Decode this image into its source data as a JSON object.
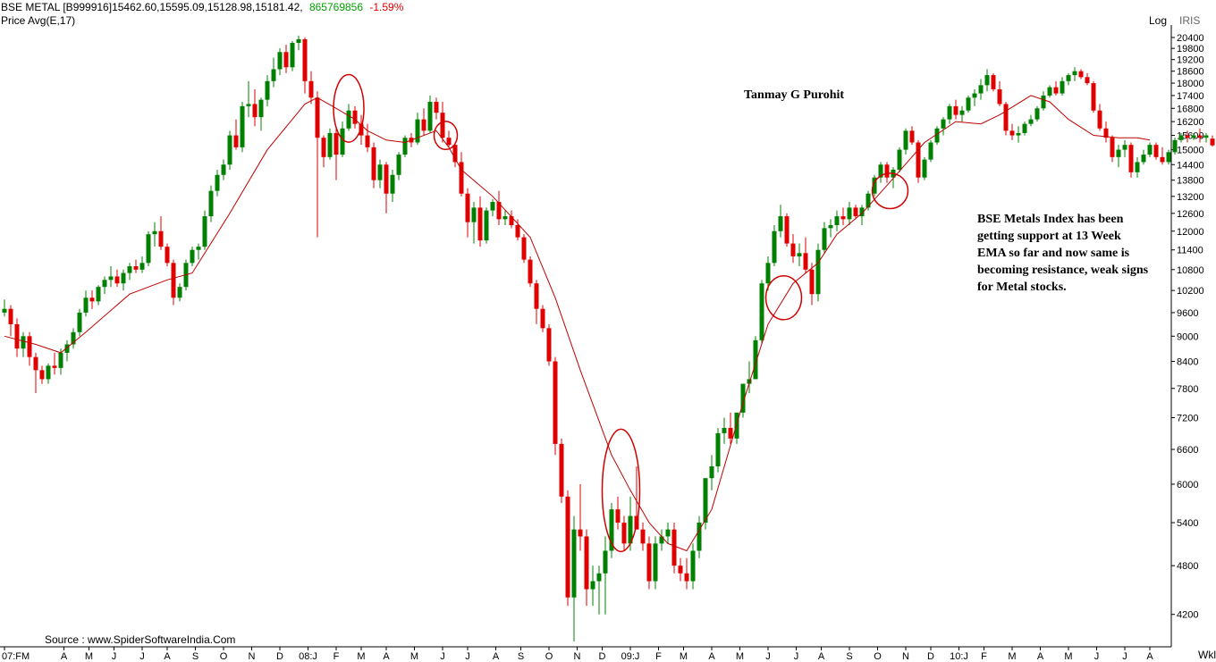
{
  "header": {
    "symbol_line": "BSE METAL [B999916]15462.60,15595.09,15128.98,15181.42,",
    "volume": "865769856",
    "change": "-1.59%",
    "indicator": "Price  Avg(E,17)",
    "scale_label": "Log",
    "brand": "IRIS"
  },
  "annotations": {
    "author": "Tanmay G Purohit",
    "comment": "BSE Metals Index  has been getting support at 13 Week EMA so far and now same is becoming resistance, weak signs for Metal stocks.",
    "source": "Source : www.SpiderSoftwareIndia.Com",
    "period_label": "Wkl"
  },
  "colors": {
    "up": "#008000",
    "down": "#e00000",
    "ema": "#c00000",
    "circle": "#d00000",
    "volume_text": "#00a000",
    "change_text": "#e00000"
  },
  "chart_data": {
    "type": "candlestick",
    "title": "BSE METAL [B999916]",
    "y_scale": "log",
    "ylim": [
      3900,
      20800
    ],
    "y_ticks": [
      4200,
      4800,
      5400,
      6000,
      6600,
      7200,
      7800,
      8400,
      9000,
      9600,
      10200,
      10800,
      11400,
      12000,
      12600,
      13200,
      13800,
      14400,
      15000,
      15600,
      16200,
      16800,
      17400,
      18000,
      18600,
      19200,
      19800,
      20400
    ],
    "x_labels": [
      "07:FM",
      "A",
      "M",
      "J",
      "J",
      "A",
      "S",
      "O",
      "N",
      "D",
      "08:J",
      "F",
      "M",
      "A",
      "M",
      "J",
      "J",
      "A",
      "S",
      "O",
      "N",
      "D",
      "09:J",
      "F",
      "M",
      "A",
      "M",
      "J",
      "J",
      "A",
      "S",
      "O",
      "N",
      "D",
      "10:J",
      "F",
      "M",
      "A",
      "M",
      "J",
      "J",
      "A"
    ],
    "x_label_weeks": [
      0,
      9.5,
      13.5,
      17.5,
      22,
      26,
      30.5,
      35,
      39.5,
      44,
      48.5,
      53,
      57,
      61,
      65.5,
      70,
      74,
      78.5,
      82.5,
      87,
      91.5,
      95.5,
      100,
      104.5,
      108.5,
      113,
      117.5,
      122,
      126.5,
      130.5,
      135,
      139.5,
      144,
      148,
      152.5,
      156.5,
      161,
      165.5,
      170,
      174.5,
      179,
      183
    ],
    "series_ema_name": "Avg(E,17)",
    "candles": [
      [
        9600,
        9950,
        9500,
        9700
      ],
      [
        9700,
        9800,
        9000,
        9300
      ],
      [
        9300,
        9450,
        8500,
        8700
      ],
      [
        8700,
        9100,
        8500,
        9000
      ],
      [
        9000,
        9100,
        8300,
        8500
      ],
      [
        8500,
        8600,
        7700,
        8200
      ],
      [
        8200,
        8300,
        7900,
        8000
      ],
      [
        8000,
        8350,
        7900,
        8300
      ],
      [
        8300,
        8600,
        8100,
        8250
      ],
      [
        8250,
        8700,
        8100,
        8600
      ],
      [
        8600,
        8900,
        8400,
        8800
      ],
      [
        8800,
        9200,
        8700,
        9100
      ],
      [
        9100,
        9700,
        9000,
        9600
      ],
      [
        9600,
        10200,
        9500,
        10000
      ],
      [
        10000,
        10200,
        9700,
        9900
      ],
      [
        9900,
        10350,
        9800,
        10300
      ],
      [
        10300,
        10600,
        10100,
        10500
      ],
      [
        10500,
        10900,
        10300,
        10600
      ],
      [
        10600,
        10800,
        10300,
        10400
      ],
      [
        10400,
        10800,
        10200,
        10700
      ],
      [
        10700,
        11000,
        10500,
        10900
      ],
      [
        10900,
        11100,
        10700,
        10800
      ],
      [
        10800,
        11200,
        10700,
        11000
      ],
      [
        11000,
        12000,
        10900,
        11900
      ],
      [
        11900,
        12300,
        11500,
        12000
      ],
      [
        12000,
        12500,
        11400,
        11500
      ],
      [
        11500,
        11600,
        10900,
        11000
      ],
      [
        11000,
        11100,
        9800,
        10000
      ],
      [
        10000,
        10400,
        9900,
        10300
      ],
      [
        10300,
        11100,
        10200,
        11000
      ],
      [
        11000,
        11500,
        10900,
        11400
      ],
      [
        11400,
        11600,
        11100,
        11500
      ],
      [
        11500,
        12700,
        11400,
        12500
      ],
      [
        12500,
        13600,
        12300,
        13400
      ],
      [
        13400,
        14200,
        13200,
        14000
      ],
      [
        14000,
        14600,
        13800,
        14400
      ],
      [
        14400,
        15800,
        14200,
        15600
      ],
      [
        15600,
        16300,
        15000,
        15100
      ],
      [
        15100,
        17100,
        14900,
        16900
      ],
      [
        16900,
        18100,
        16400,
        17000
      ],
      [
        17000,
        17700,
        16000,
        16400
      ],
      [
        16400,
        17300,
        15800,
        17200
      ],
      [
        17200,
        18400,
        16900,
        18100
      ],
      [
        18100,
        19300,
        17800,
        18700
      ],
      [
        18700,
        19800,
        18400,
        19600
      ],
      [
        19600,
        20000,
        18500,
        18800
      ],
      [
        18800,
        20200,
        18600,
        20100
      ],
      [
        20100,
        20500,
        19700,
        20300
      ],
      [
        20300,
        20400,
        17500,
        18100
      ],
      [
        18100,
        18600,
        17000,
        17300
      ],
      [
        17300,
        17600,
        11800,
        15500
      ],
      [
        15500,
        15600,
        14300,
        14700
      ],
      [
        14700,
        15900,
        14600,
        15700
      ],
      [
        15700,
        15900,
        13800,
        14800
      ],
      [
        14800,
        16200,
        14700,
        15900
      ],
      [
        15900,
        17000,
        15800,
        16700
      ],
      [
        16700,
        16900,
        15900,
        16100
      ],
      [
        16100,
        16500,
        15200,
        15600
      ],
      [
        15600,
        16100,
        14900,
        15100
      ],
      [
        15100,
        15300,
        13500,
        13800
      ],
      [
        13800,
        14600,
        13500,
        14400
      ],
      [
        14400,
        14500,
        12600,
        13300
      ],
      [
        13300,
        14200,
        13000,
        14000
      ],
      [
        14000,
        14900,
        13800,
        14800
      ],
      [
        14800,
        15600,
        14700,
        15500
      ],
      [
        15500,
        15700,
        15100,
        15300
      ],
      [
        15300,
        16600,
        15200,
        16300
      ],
      [
        16300,
        16800,
        15600,
        15800
      ],
      [
        15800,
        17400,
        15700,
        17100
      ],
      [
        17100,
        17300,
        16300,
        16600
      ],
      [
        16600,
        17100,
        15300,
        15500
      ],
      [
        15500,
        15800,
        15100,
        15200
      ],
      [
        15200,
        15300,
        14300,
        14500
      ],
      [
        14500,
        14900,
        13200,
        13300
      ],
      [
        13300,
        13500,
        11800,
        12300
      ],
      [
        12300,
        13000,
        11600,
        12800
      ],
      [
        12800,
        13200,
        11500,
        11700
      ],
      [
        11700,
        12800,
        11600,
        12700
      ],
      [
        12700,
        13100,
        12500,
        13000
      ],
      [
        13000,
        13400,
        12200,
        12400
      ],
      [
        12400,
        12700,
        12200,
        12500
      ],
      [
        12500,
        12700,
        12100,
        12200
      ],
      [
        12200,
        12400,
        11700,
        11800
      ],
      [
        11800,
        11900,
        11000,
        11100
      ],
      [
        11100,
        11200,
        10300,
        10400
      ],
      [
        10400,
        10500,
        9300,
        9700
      ],
      [
        9700,
        9800,
        9100,
        9200
      ],
      [
        9200,
        9300,
        8300,
        8400
      ],
      [
        8400,
        8500,
        6500,
        6700
      ],
      [
        6700,
        6800,
        5700,
        5800
      ],
      [
        5800,
        5900,
        4300,
        4400
      ],
      [
        4400,
        5500,
        3900,
        5300
      ],
      [
        5300,
        6000,
        5000,
        5200
      ],
      [
        5200,
        5300,
        4300,
        4500
      ],
      [
        4500,
        4800,
        4300,
        4600
      ],
      [
        4600,
        4800,
        4200,
        4700
      ],
      [
        4700,
        5200,
        4200,
        5000
      ],
      [
        5000,
        5700,
        4900,
        5600
      ],
      [
        5600,
        5800,
        5300,
        5400
      ],
      [
        5400,
        5500,
        5000,
        5100
      ],
      [
        5100,
        5800,
        5000,
        5500
      ],
      [
        5500,
        6300,
        5400,
        5300
      ],
      [
        5300,
        5400,
        5000,
        5100
      ],
      [
        5100,
        5200,
        4500,
        4600
      ],
      [
        4600,
        5200,
        4500,
        5100
      ],
      [
        5100,
        5300,
        5000,
        5200
      ],
      [
        5200,
        5400,
        5100,
        5300
      ],
      [
        5300,
        5400,
        4700,
        4800
      ],
      [
        4800,
        4900,
        4600,
        4700
      ],
      [
        4700,
        4900,
        4500,
        4600
      ],
      [
        4600,
        5100,
        4500,
        5000
      ],
      [
        5000,
        5500,
        4900,
        5400
      ],
      [
        5400,
        6100,
        5300,
        6100
      ],
      [
        6100,
        6500,
        5900,
        6300
      ],
      [
        6300,
        7000,
        6200,
        6900
      ],
      [
        6900,
        7200,
        6700,
        7000
      ],
      [
        7000,
        7300,
        6700,
        6800
      ],
      [
        6800,
        7300,
        6700,
        7300
      ],
      [
        7300,
        7900,
        7200,
        7900
      ],
      [
        7900,
        8400,
        7700,
        8000
      ],
      [
        8000,
        9000,
        8000,
        8900
      ],
      [
        8900,
        10500,
        8800,
        10400
      ],
      [
        10400,
        11200,
        10200,
        11000
      ],
      [
        11000,
        12200,
        10900,
        12000
      ],
      [
        12000,
        12900,
        11800,
        12500
      ],
      [
        12500,
        12600,
        11500,
        11600
      ],
      [
        11600,
        11900,
        11000,
        11200
      ],
      [
        11200,
        11600,
        10900,
        11300
      ],
      [
        11300,
        11800,
        10700,
        10800
      ],
      [
        10800,
        11000,
        9800,
        10100
      ],
      [
        10100,
        11600,
        9900,
        11400
      ],
      [
        11400,
        12300,
        11300,
        12100
      ],
      [
        12100,
        12400,
        11800,
        12200
      ],
      [
        12200,
        12700,
        12000,
        12500
      ],
      [
        12500,
        12800,
        12200,
        12400
      ],
      [
        12400,
        13000,
        12200,
        12800
      ],
      [
        12800,
        12900,
        12400,
        12500
      ],
      [
        12500,
        12900,
        12200,
        12800
      ],
      [
        12800,
        13400,
        12700,
        13300
      ],
      [
        13300,
        14000,
        13200,
        13900
      ],
      [
        13900,
        14500,
        13700,
        14400
      ],
      [
        14400,
        14500,
        13700,
        13900
      ],
      [
        13900,
        14300,
        13500,
        14200
      ],
      [
        14200,
        15100,
        14100,
        15000
      ],
      [
        15000,
        15900,
        14800,
        15800
      ],
      [
        15800,
        16000,
        15200,
        15300
      ],
      [
        15300,
        15400,
        13700,
        13900
      ],
      [
        13900,
        14700,
        13800,
        14600
      ],
      [
        14600,
        15400,
        14500,
        15300
      ],
      [
        15300,
        16000,
        15200,
        15900
      ],
      [
        15900,
        16400,
        15600,
        16300
      ],
      [
        16300,
        17000,
        16100,
        16900
      ],
      [
        16900,
        17200,
        16300,
        16500
      ],
      [
        16500,
        16900,
        16200,
        16700
      ],
      [
        16700,
        17400,
        16600,
        17300
      ],
      [
        17300,
        17700,
        16900,
        17500
      ],
      [
        17500,
        18200,
        17200,
        17900
      ],
      [
        17900,
        18700,
        17600,
        18400
      ],
      [
        18400,
        18500,
        17600,
        17700
      ],
      [
        17700,
        18100,
        16900,
        17000
      ],
      [
        17000,
        17100,
        15600,
        15800
      ],
      [
        15800,
        16100,
        15400,
        15600
      ],
      [
        15600,
        16000,
        15300,
        15700
      ],
      [
        15700,
        16200,
        15600,
        16100
      ],
      [
        16100,
        16500,
        16000,
        16300
      ],
      [
        16300,
        16900,
        16200,
        16800
      ],
      [
        16800,
        17600,
        16700,
        17400
      ],
      [
        17400,
        17900,
        17300,
        17800
      ],
      [
        17800,
        18100,
        17400,
        17500
      ],
      [
        17500,
        18300,
        17400,
        18100
      ],
      [
        18100,
        18500,
        17900,
        18400
      ],
      [
        18400,
        18800,
        18100,
        18600
      ],
      [
        18600,
        18700,
        18200,
        18300
      ],
      [
        18300,
        18500,
        17900,
        18000
      ],
      [
        18000,
        18100,
        16600,
        16700
      ],
      [
        16700,
        17000,
        15800,
        15900
      ],
      [
        15900,
        16200,
        15300,
        15500
      ],
      [
        15500,
        15600,
        14500,
        14700
      ],
      [
        14700,
        15200,
        14300,
        15000
      ],
      [
        15000,
        15400,
        14700,
        15200
      ],
      [
        15200,
        15300,
        13900,
        14100
      ],
      [
        14100,
        14700,
        13900,
        14500
      ],
      [
        14500,
        15000,
        14400,
        14800
      ],
      [
        14800,
        15300,
        14700,
        15200
      ],
      [
        15200,
        15300,
        14600,
        14700
      ],
      [
        14700,
        15100,
        14400,
        14500
      ],
      [
        14500,
        15000,
        14400,
        14900
      ],
      [
        14900,
        15500,
        14800,
        15400
      ],
      [
        15400,
        15700,
        15300,
        15600
      ],
      [
        15600,
        15800,
        15300,
        15500
      ],
      [
        15500,
        15700,
        15400,
        15600
      ],
      [
        15600,
        15900,
        15300,
        15500
      ],
      [
        15500,
        15700,
        15300,
        15600
      ],
      [
        15462.6,
        15595.09,
        15128.98,
        15181.42
      ]
    ],
    "ema": [
      [
        0,
        9000
      ],
      [
        5,
        8800
      ],
      [
        9,
        8600
      ],
      [
        13,
        9100
      ],
      [
        20,
        10100
      ],
      [
        26,
        10500
      ],
      [
        30,
        10700
      ],
      [
        36,
        12600
      ],
      [
        42,
        15000
      ],
      [
        46,
        16300
      ],
      [
        48,
        17000
      ],
      [
        50,
        17300
      ],
      [
        53,
        16800
      ],
      [
        56,
        16300
      ],
      [
        58,
        15800
      ],
      [
        61,
        15400
      ],
      [
        64,
        15300
      ],
      [
        66,
        15500
      ],
      [
        69,
        15800
      ],
      [
        71,
        15100
      ],
      [
        73,
        14200
      ],
      [
        78,
        13200
      ],
      [
        84,
        11800
      ],
      [
        88,
        10000
      ],
      [
        92,
        8200
      ],
      [
        97,
        6500
      ],
      [
        100,
        5900
      ],
      [
        103,
        5400
      ],
      [
        106,
        5100
      ],
      [
        109,
        5000
      ],
      [
        113,
        5600
      ],
      [
        118,
        7500
      ],
      [
        122,
        9300
      ],
      [
        126,
        10400
      ],
      [
        130,
        11000
      ],
      [
        133,
        11900
      ],
      [
        137,
        12600
      ],
      [
        141,
        13600
      ],
      [
        147,
        15300
      ],
      [
        152,
        16200
      ],
      [
        156,
        16100
      ],
      [
        159,
        16500
      ],
      [
        164,
        17400
      ],
      [
        167,
        17100
      ],
      [
        170,
        16300
      ],
      [
        174,
        15600
      ],
      [
        178,
        15500
      ],
      [
        181,
        15500
      ],
      [
        183,
        15400
      ]
    ],
    "circles": [
      [
        55,
        16800,
        8.5,
        1550
      ],
      [
        70.5,
        15600,
        6.5,
        600
      ],
      [
        98.5,
        5900,
        10.5,
        980
      ],
      [
        124.5,
        10000,
        10,
        600
      ],
      [
        141.5,
        13400,
        10,
        650
      ]
    ]
  }
}
